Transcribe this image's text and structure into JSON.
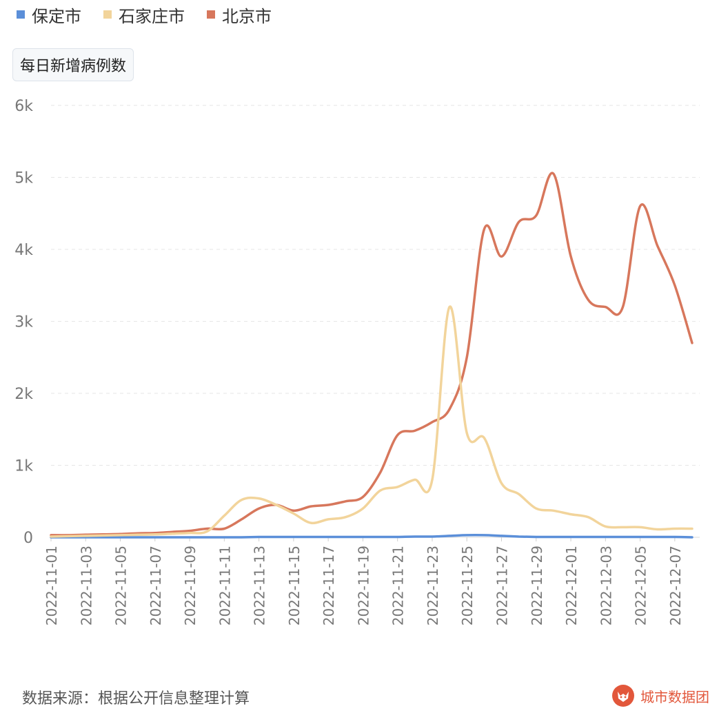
{
  "legend": [
    {
      "name": "保定市",
      "color": "#5b8fd9"
    },
    {
      "name": "石家庄市",
      "color": "#f2d49b"
    },
    {
      "name": "北京市",
      "color": "#d7775c"
    }
  ],
  "metric_tab": "每日新增病例数",
  "footer": {
    "source": "数据来源：根据公开信息整理计算",
    "brand": "城市数据团",
    "brand_icon": "fox-logo-icon"
  },
  "chart_data": {
    "type": "line",
    "title": "每日新增病例数",
    "xlabel": "",
    "ylabel": "",
    "ylim": [
      0,
      6000
    ],
    "y_ticks": [
      0,
      1000,
      2000,
      3000,
      4000,
      5000,
      6000
    ],
    "y_tick_labels": [
      "0",
      "1k",
      "2k",
      "3k",
      "4k",
      "5k",
      "6k"
    ],
    "grid": "horizontal dashed",
    "x_tick_labels": [
      "2022-11-01",
      "2022-11-03",
      "2022-11-05",
      "2022-11-07",
      "2022-11-09",
      "2022-11-11",
      "2022-11-13",
      "2022-11-15",
      "2022-11-17",
      "2022-11-19",
      "2022-11-21",
      "2022-11-23",
      "2022-11-25",
      "2022-11-27",
      "2022-11-29",
      "2022-12-01",
      "2022-12-03",
      "2022-12-05",
      "2022-12-07"
    ],
    "categories": [
      "2022-11-01",
      "2022-11-02",
      "2022-11-03",
      "2022-11-04",
      "2022-11-05",
      "2022-11-06",
      "2022-11-07",
      "2022-11-08",
      "2022-11-09",
      "2022-11-10",
      "2022-11-11",
      "2022-11-12",
      "2022-11-13",
      "2022-11-14",
      "2022-11-15",
      "2022-11-16",
      "2022-11-17",
      "2022-11-18",
      "2022-11-19",
      "2022-11-20",
      "2022-11-21",
      "2022-11-22",
      "2022-11-23",
      "2022-11-24",
      "2022-11-25",
      "2022-11-26",
      "2022-11-27",
      "2022-11-28",
      "2022-11-29",
      "2022-11-30",
      "2022-12-01",
      "2022-12-02",
      "2022-12-03",
      "2022-12-04",
      "2022-12-05",
      "2022-12-06",
      "2022-12-07",
      "2022-12-08"
    ],
    "series": [
      {
        "name": "保定市",
        "color": "#5b8fd9",
        "values": [
          0,
          0,
          0,
          0,
          0,
          0,
          0,
          0,
          0,
          0,
          0,
          0,
          5,
          5,
          5,
          5,
          5,
          5,
          5,
          5,
          5,
          10,
          10,
          20,
          30,
          30,
          20,
          10,
          5,
          5,
          5,
          5,
          5,
          5,
          5,
          5,
          5,
          0
        ]
      },
      {
        "name": "石家庄市",
        "color": "#f2d49b",
        "values": [
          10,
          15,
          20,
          25,
          30,
          35,
          40,
          50,
          60,
          80,
          300,
          520,
          540,
          450,
          330,
          200,
          250,
          280,
          400,
          650,
          700,
          800,
          800,
          3200,
          1450,
          1380,
          750,
          600,
          400,
          370,
          320,
          280,
          150,
          140,
          140,
          110,
          120,
          120
        ]
      },
      {
        "name": "北京市",
        "color": "#d7775c",
        "values": [
          30,
          30,
          35,
          40,
          45,
          55,
          60,
          75,
          90,
          120,
          120,
          250,
          400,
          450,
          370,
          430,
          450,
          500,
          560,
          900,
          1420,
          1480,
          1600,
          1780,
          2500,
          4280,
          3900,
          4380,
          4470,
          5050,
          3900,
          3300,
          3200,
          3200,
          4600,
          4050,
          3500,
          2700
        ]
      }
    ]
  }
}
